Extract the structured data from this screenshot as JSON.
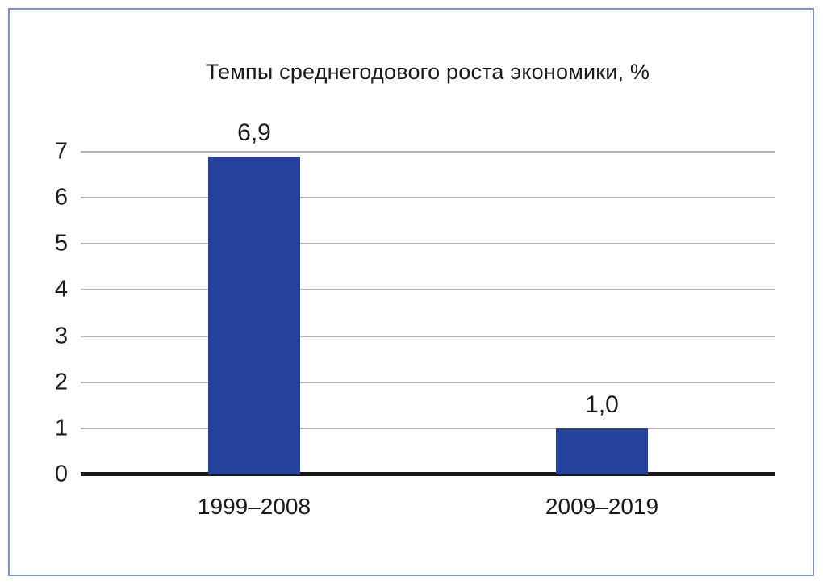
{
  "chart_data": {
    "type": "bar",
    "title": "Темпы среднегодового роста экономики, %",
    "categories": [
      "1999–2008",
      "2009–2019"
    ],
    "values": [
      6.9,
      1.0
    ],
    "value_labels": [
      "6,9",
      "1,0"
    ],
    "xlabel": "",
    "ylabel": "",
    "ylim": [
      0,
      7
    ],
    "y_ticks": [
      0,
      1,
      2,
      3,
      4,
      5,
      6,
      7
    ],
    "grid": true,
    "legend": false,
    "bar_color": "#24419b",
    "gridline_color": "#b3b3b7",
    "baseline_color": "#1a1a1a",
    "frame_border_color": "#7e91c6"
  }
}
